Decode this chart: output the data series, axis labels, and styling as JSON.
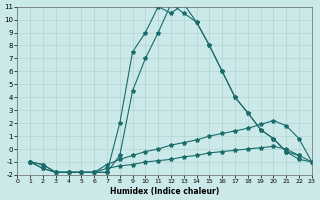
{
  "xlabel": "Humidex (Indice chaleur)",
  "bg_color": "#cce9e9",
  "grid_color": "#b0d4d4",
  "line_color": "#1a6b6b",
  "xlim": [
    0,
    23
  ],
  "ylim": [
    -2,
    11
  ],
  "xticks": [
    0,
    1,
    2,
    3,
    4,
    5,
    6,
    7,
    8,
    9,
    10,
    11,
    12,
    13,
    14,
    15,
    16,
    17,
    18,
    19,
    20,
    21,
    22,
    23
  ],
  "yticks": [
    -2,
    -1,
    0,
    1,
    2,
    3,
    4,
    5,
    6,
    7,
    8,
    9,
    10,
    11
  ],
  "curve1_x": [
    1,
    2,
    3,
    4,
    5,
    6,
    7,
    8,
    9,
    10,
    11,
    12,
    13,
    14,
    15,
    16,
    17,
    18,
    19,
    20,
    21,
    22,
    23
  ],
  "curve1_y": [
    -1,
    -1.2,
    -1.8,
    -1.8,
    -1.8,
    -1.8,
    -1.8,
    2.0,
    7.5,
    9.0,
    11.0,
    10.5,
    11.2,
    9.8,
    8.0,
    6.0,
    4.0,
    2.8,
    1.5,
    0.8,
    -0.2,
    -0.8,
    -1.0
  ],
  "curve2_x": [
    1,
    2,
    3,
    4,
    5,
    6,
    7,
    8,
    9,
    10,
    11,
    12,
    13,
    14,
    15,
    16,
    17,
    18,
    19,
    20,
    21,
    22
  ],
  "curve2_y": [
    -1,
    -1.2,
    -1.8,
    -1.8,
    -1.8,
    -1.8,
    -1.8,
    -0.5,
    4.5,
    7.0,
    9.0,
    11.2,
    10.5,
    9.8,
    8.0,
    6.0,
    4.0,
    2.8,
    1.5,
    0.8,
    -0.2,
    -0.5
  ],
  "curve3_x": [
    1,
    2,
    3,
    4,
    5,
    6,
    7,
    8,
    9,
    10,
    11,
    12,
    13,
    14,
    15,
    16,
    17,
    18,
    19,
    20,
    21,
    22,
    23
  ],
  "curve3_y": [
    -1,
    -1.5,
    -1.8,
    -1.8,
    -1.8,
    -1.8,
    -1.2,
    -0.8,
    -0.5,
    -0.2,
    0.0,
    0.3,
    0.5,
    0.7,
    1.0,
    1.2,
    1.4,
    1.6,
    1.9,
    2.2,
    1.8,
    0.8,
    -1.0
  ],
  "curve4_x": [
    1,
    2,
    3,
    4,
    5,
    6,
    7,
    8,
    9,
    10,
    11,
    12,
    13,
    14,
    15,
    16,
    17,
    18,
    19,
    20,
    21,
    22,
    23
  ],
  "curve4_y": [
    -1,
    -1.5,
    -1.8,
    -1.8,
    -1.8,
    -1.8,
    -1.5,
    -1.3,
    -1.2,
    -1.0,
    -0.9,
    -0.8,
    -0.6,
    -0.5,
    -0.3,
    -0.2,
    -0.1,
    0.0,
    0.1,
    0.2,
    0.0,
    -0.5,
    -1.0
  ]
}
